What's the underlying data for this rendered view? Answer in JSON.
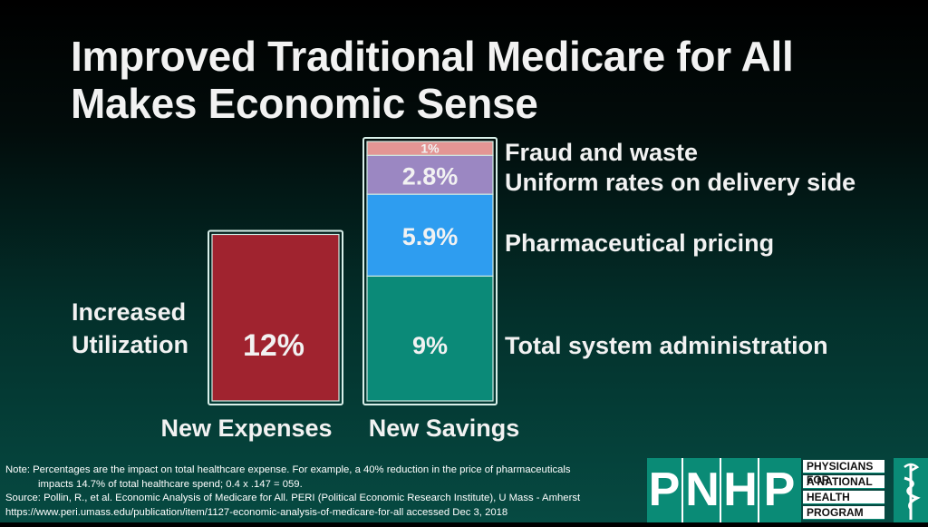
{
  "title": {
    "line1": "Improved Traditional Medicare for All",
    "line2": "Makes Economic Sense"
  },
  "chart_data": {
    "type": "bar",
    "stacked": true,
    "unit": "%",
    "categories": [
      "New Expenses",
      "New Savings"
    ],
    "series": [
      {
        "name": "Increased Utilization",
        "category": "New Expenses",
        "value": 12,
        "label": "12%",
        "color": "#a0232f",
        "side_label_lines": [
          "Increased",
          "Utilization"
        ]
      },
      {
        "name": "Total system administration",
        "category": "New Savings",
        "value": 9,
        "label": "9%",
        "color": "#0b8a78"
      },
      {
        "name": "Pharmaceutical pricing",
        "category": "New Savings",
        "value": 5.9,
        "label": "5.9%",
        "color": "#2e9df0"
      },
      {
        "name": "Uniform rates on delivery side",
        "category": "New Savings",
        "value": 2.8,
        "label": "2.8%",
        "color": "#9b87c2"
      },
      {
        "name": "Fraud and waste",
        "category": "New Savings",
        "value": 1,
        "label": "1%",
        "color": "#e39594"
      }
    ],
    "title": "Improved Traditional Medicare for All Makes Economic Sense",
    "xlabel": "",
    "ylabel": "",
    "ylim": [
      0,
      18.7
    ]
  },
  "note": {
    "line1": "Note: Percentages are the impact on total healthcare expense. For example, a 40% reduction in the price of pharmaceuticals",
    "line2": "impacts 14.7% of total healthcare spend; 0.4 x .147 = 059.",
    "line3": "Source: Pollin, R., et al. Economic Analysis of Medicare for All. PERI (Political Economic Research Institute), U Mass - Amherst",
    "line4": "https://www.peri.umass.edu/publication/item/1127-economic-analysis-of-medicare-for-all accessed Dec 3, 2018"
  },
  "logo": {
    "letters": [
      "P",
      "N",
      "H",
      "P"
    ],
    "words": [
      "PHYSICIANS FOR",
      "A NATIONAL",
      "HEALTH",
      "PROGRAM"
    ],
    "icon": "caduceus-icon"
  }
}
